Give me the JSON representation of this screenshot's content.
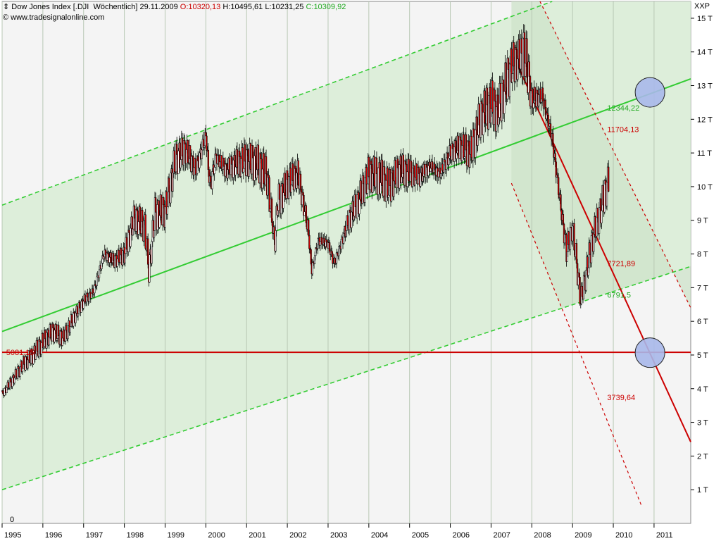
{
  "header": {
    "icon": "chevron-updown-icon",
    "instrument": "Dow Jones Index [.DJI  Wöchentlich]",
    "date": "29.11.2009",
    "open": "O:10320,13",
    "high": "H:10495,61",
    "low": "L:10231,25",
    "close": "C:10309,92",
    "source": "© www.tradesignalonline.com",
    "unit": "XXP"
  },
  "colors": {
    "price_up": "#000000",
    "price_down": "#cc0000",
    "channel": "#33cc33",
    "channel_fill": "#cfe6cc",
    "support": "#cc0000"
  },
  "chart_data": {
    "type": "line",
    "title": "Dow Jones Index [.DJI  Wöchentlich]",
    "xlabel": "",
    "ylabel": "",
    "xlim": [
      1995.0,
      2011.9
    ],
    "ylim": [
      0,
      15500
    ],
    "y_ticks": [
      {
        "value": 1000,
        "label": "1 T"
      },
      {
        "value": 2000,
        "label": "2 T"
      },
      {
        "value": 3000,
        "label": "3 T"
      },
      {
        "value": 4000,
        "label": "4 T"
      },
      {
        "value": 5000,
        "label": "5 T"
      },
      {
        "value": 6000,
        "label": "6 T"
      },
      {
        "value": 7000,
        "label": "7 T"
      },
      {
        "value": 8000,
        "label": "8 T"
      },
      {
        "value": 9000,
        "label": "9 T"
      },
      {
        "value": 10000,
        "label": "10 T"
      },
      {
        "value": 11000,
        "label": "11 T"
      },
      {
        "value": 12000,
        "label": "12 T"
      },
      {
        "value": 13000,
        "label": "13 T"
      },
      {
        "value": 14000,
        "label": "14 T"
      },
      {
        "value": 15000,
        "label": "15 T"
      }
    ],
    "y_zero_label": "0",
    "x_ticks": [
      {
        "value": 1995,
        "label": "1995"
      },
      {
        "value": 1996,
        "label": "1996"
      },
      {
        "value": 1997,
        "label": "1997"
      },
      {
        "value": 1998,
        "label": "1998"
      },
      {
        "value": 1999,
        "label": "1999"
      },
      {
        "value": 2000,
        "label": "2000"
      },
      {
        "value": 2001,
        "label": "2001"
      },
      {
        "value": 2002,
        "label": "2002"
      },
      {
        "value": 2003,
        "label": "2003"
      },
      {
        "value": 2004,
        "label": "2004"
      },
      {
        "value": 2005,
        "label": "2005"
      },
      {
        "value": 2006,
        "label": "2006"
      },
      {
        "value": 2007,
        "label": "2007"
      },
      {
        "value": 2008,
        "label": "2008"
      },
      {
        "value": 2009,
        "label": "2009"
      },
      {
        "value": 2010,
        "label": "2010"
      },
      {
        "value": 2011,
        "label": "2011"
      }
    ],
    "grid": true,
    "series": [
      {
        "name": "",
        "x": [
          1995.0,
          1995.25,
          1995.5,
          1995.75,
          1996.0,
          1996.25,
          1996.5,
          1996.75,
          1997.0,
          1997.25,
          1997.5,
          1997.75,
          1998.0,
          1998.25,
          1998.5,
          1998.6,
          1998.75,
          1999.0,
          1999.25,
          1999.5,
          1999.75,
          2000.0,
          2000.1,
          2000.25,
          2000.5,
          2000.75,
          2001.0,
          2001.25,
          2001.5,
          2001.7,
          2001.75,
          2002.0,
          2002.25,
          2002.5,
          2002.6,
          2002.75,
          2003.0,
          2003.15,
          2003.5,
          2003.75,
          2004.0,
          2004.25,
          2004.5,
          2004.75,
          2005.0,
          2005.25,
          2005.5,
          2005.75,
          2006.0,
          2006.25,
          2006.5,
          2006.75,
          2007.0,
          2007.15,
          2007.5,
          2007.75,
          2007.8,
          2008.0,
          2008.25,
          2008.5,
          2008.75,
          2008.85,
          2009.0,
          2009.2,
          2009.5,
          2009.75,
          2009.9
        ],
        "values": [
          3840,
          4250,
          4700,
          5000,
          5400,
          5700,
          5500,
          6100,
          6600,
          6900,
          8000,
          7800,
          8000,
          9100,
          8800,
          7500,
          9200,
          9300,
          10800,
          11100,
          10500,
          11500,
          10000,
          10900,
          10500,
          10700,
          10800,
          10700,
          10300,
          8200,
          9500,
          10100,
          10400,
          8800,
          7500,
          8400,
          8300,
          7700,
          9000,
          9600,
          10400,
          10300,
          10000,
          10500,
          10400,
          10300,
          10600,
          10400,
          11000,
          11200,
          11000,
          12100,
          12500,
          12200,
          13600,
          13900,
          14100,
          12600,
          12700,
          11400,
          9000,
          8100,
          8800,
          6600,
          8500,
          9600,
          10300
        ]
      }
    ],
    "trend_lines": [
      {
        "kind": "green-channel-center",
        "from": [
          1995.0,
          5700
        ],
        "to": [
          2011.9,
          13200
        ]
      },
      {
        "kind": "green-channel-upper",
        "from": [
          1995.0,
          9450
        ],
        "to": [
          2008.5,
          15500
        ]
      },
      {
        "kind": "green-channel-lower",
        "from": [
          1995.0,
          1000
        ],
        "to": [
          2011.9,
          7630
        ]
      },
      {
        "kind": "red-downtrend-center",
        "from": [
          2007.5,
          14000
        ],
        "to": [
          2011.9,
          2420
        ]
      },
      {
        "kind": "red-downtrend-upper",
        "from": [
          2008.2,
          15500
        ],
        "to": [
          2011.9,
          6400
        ]
      },
      {
        "kind": "red-downtrend-lower",
        "from": [
          2007.5,
          10100
        ],
        "to": [
          2010.7,
          500
        ]
      },
      {
        "kind": "support-horizontal",
        "from": [
          1995.0,
          5081.15
        ],
        "to": [
          2011.9,
          5081.15
        ]
      }
    ],
    "annotations": [
      {
        "text": "5081,15",
        "x": 1995.1,
        "y": 5081.15,
        "color": "red"
      },
      {
        "text": "12344,22",
        "x": 2009.85,
        "y": 12344.22,
        "color": "green"
      },
      {
        "text": "11704,13",
        "x": 2009.85,
        "y": 11704.13,
        "color": "red"
      },
      {
        "text": "7721,89",
        "x": 2009.85,
        "y": 7721.89,
        "color": "red"
      },
      {
        "text": "6791,5",
        "x": 2009.85,
        "y": 6791.5,
        "color": "green"
      },
      {
        "text": "3739,64",
        "x": 2009.85,
        "y": 3739.64,
        "color": "red"
      }
    ],
    "markers": [
      {
        "shape": "circle",
        "x": 2010.9,
        "y": 12800
      },
      {
        "shape": "circle",
        "x": 2010.9,
        "y": 5070
      }
    ],
    "shaded_regions": [
      {
        "kind": "green-channel",
        "color": "#d8ecd5"
      },
      {
        "kind": "red-channel",
        "color": "#cde3c9",
        "from_x": 2007.5
      }
    ]
  }
}
